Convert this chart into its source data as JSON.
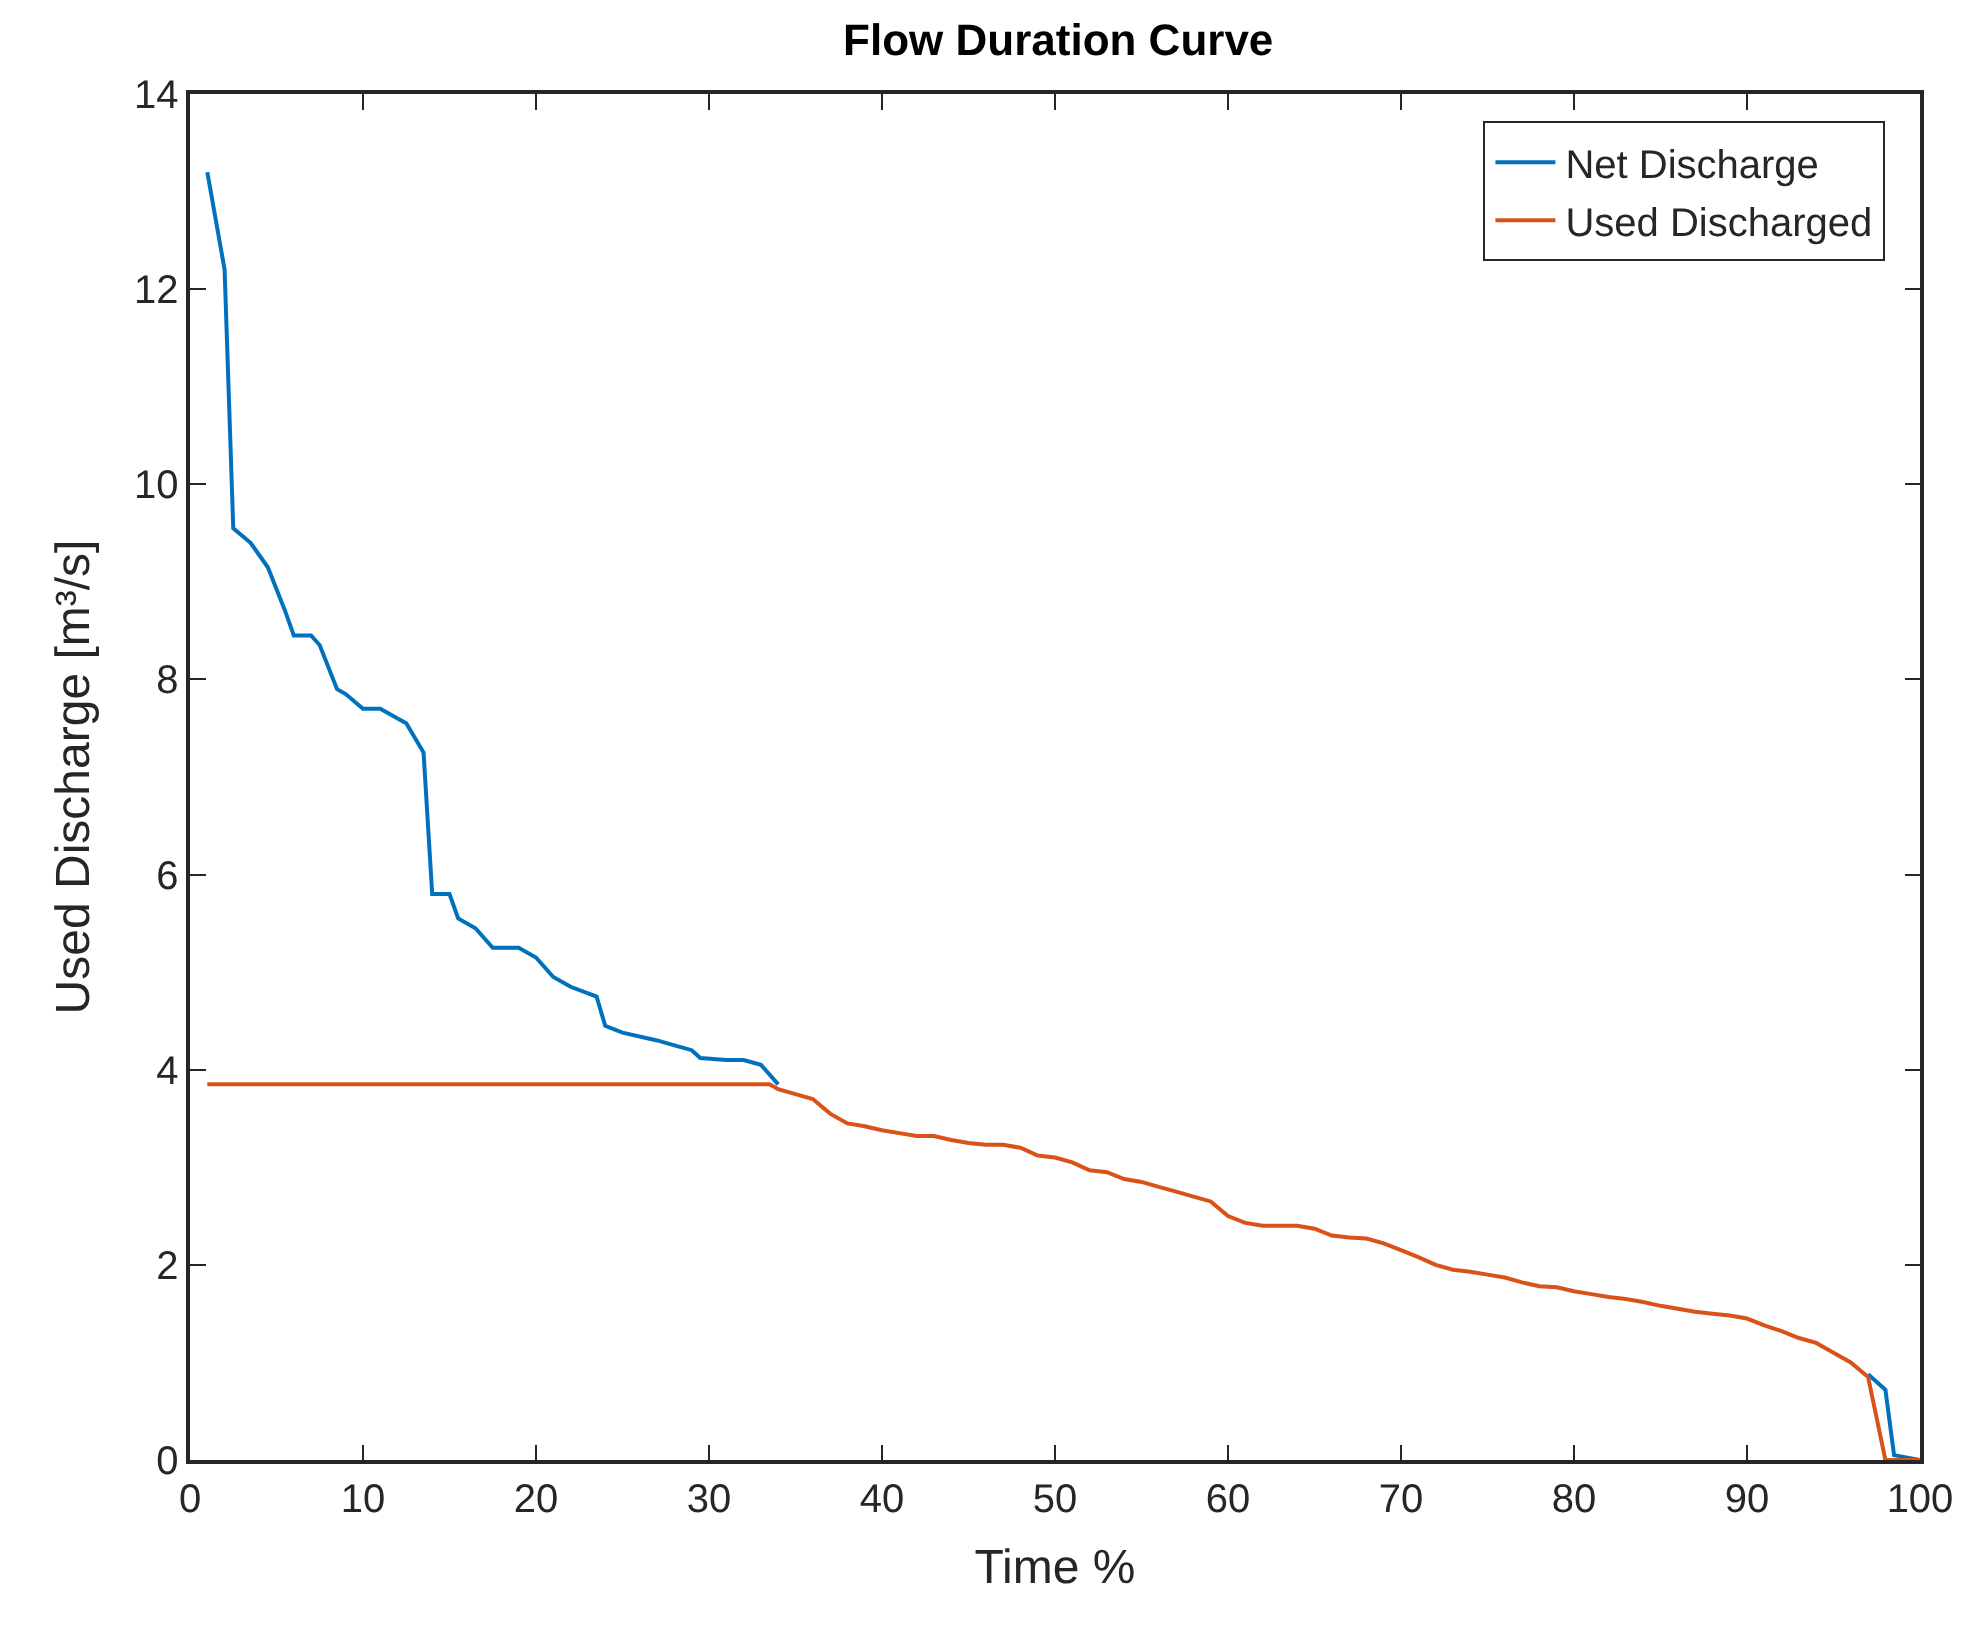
{
  "chart_data": {
    "type": "line",
    "title": "Flow Duration Curve",
    "xlabel": "Time %",
    "ylabel": "Used Discharge [m³/s]",
    "xlim": [
      0,
      100
    ],
    "xticks": [
      0,
      10,
      20,
      30,
      40,
      50,
      60,
      70,
      80,
      90,
      100
    ],
    "ylim": [
      0,
      14
    ],
    "yticks": [
      0,
      2,
      4,
      6,
      8,
      10,
      12,
      14
    ],
    "legend": "top right",
    "line_style": "solid",
    "marker": "none",
    "series": [
      {
        "name": "Net Discharge",
        "color": "#0072bd",
        "x": [
          1,
          2,
          2.5,
          3.5,
          4.5,
          5.5,
          6,
          7,
          7.5,
          8.5,
          9,
          10,
          11,
          12,
          12.5,
          13.5,
          14,
          15,
          15.5,
          16.5,
          17.5,
          19,
          20,
          21,
          22,
          23.5,
          24,
          25,
          27,
          28,
          29,
          29.5,
          31,
          32,
          33,
          34,
          35,
          97,
          98,
          98.5,
          100
        ],
        "values": [
          13.2,
          12.2,
          9.55,
          9.4,
          9.15,
          8.7,
          8.45,
          8.45,
          8.35,
          7.9,
          7.85,
          7.7,
          7.7,
          7.6,
          7.55,
          7.25,
          5.8,
          5.8,
          5.55,
          5.45,
          5.25,
          5.25,
          5.15,
          4.95,
          4.85,
          4.75,
          4.45,
          4.38,
          4.3,
          4.25,
          4.2,
          4.12,
          4.1,
          4.1,
          4.05,
          3.85,
          null,
          0.88,
          0.72,
          0.05,
          0
        ]
      },
      {
        "name": "Used Discharged",
        "color": "#d95319",
        "x": [
          1,
          33.5,
          34,
          35,
          36,
          37,
          38,
          39,
          40,
          41,
          42,
          43,
          44,
          45,
          46,
          47,
          48,
          49,
          50,
          51,
          52,
          53,
          54,
          55,
          56,
          57,
          58,
          59,
          60,
          61,
          62,
          63,
          64,
          65,
          66,
          67,
          68,
          69,
          70,
          71,
          72,
          73,
          74,
          75,
          76,
          77,
          78,
          79,
          80,
          81,
          82,
          83,
          84,
          85,
          86,
          87,
          88,
          89,
          90,
          91,
          92,
          93,
          94,
          95,
          96,
          97,
          98,
          100
        ],
        "values": [
          3.85,
          3.85,
          3.8,
          3.75,
          3.7,
          3.55,
          3.45,
          3.42,
          3.38,
          3.35,
          3.32,
          3.32,
          3.28,
          3.25,
          3.23,
          3.23,
          3.2,
          3.12,
          3.1,
          3.05,
          2.97,
          2.95,
          2.88,
          2.85,
          2.8,
          2.75,
          2.7,
          2.65,
          2.5,
          2.43,
          2.4,
          2.4,
          2.4,
          2.37,
          2.3,
          2.28,
          2.27,
          2.22,
          2.15,
          2.08,
          2.0,
          1.95,
          1.93,
          1.9,
          1.87,
          1.82,
          1.78,
          1.77,
          1.73,
          1.7,
          1.67,
          1.65,
          1.62,
          1.58,
          1.55,
          1.52,
          1.5,
          1.48,
          1.45,
          1.38,
          1.32,
          1.25,
          1.2,
          1.1,
          1.0,
          0.85,
          0,
          0
        ]
      }
    ]
  }
}
